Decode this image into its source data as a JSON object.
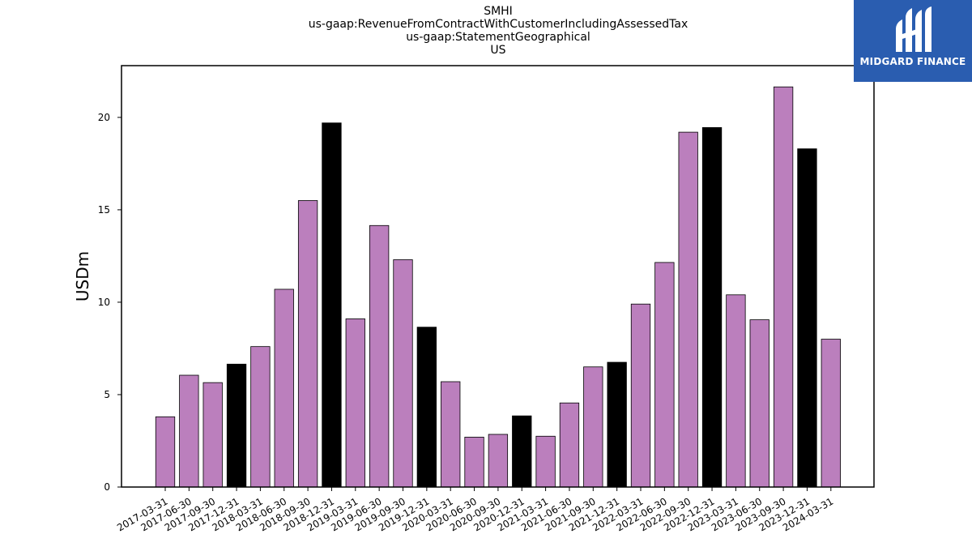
{
  "chart_data": {
    "type": "bar",
    "title_lines": [
      "SMHI",
      "us-gaap:RevenueFromContractWithCustomerIncludingAssessedTax",
      "us-gaap:StatementGeographical",
      "US"
    ],
    "xlabel": "",
    "ylabel": "USDm",
    "ylim": [
      0,
      22.8
    ],
    "yticks": [
      0,
      5,
      10,
      15,
      20
    ],
    "categories": [
      "2017-03-31",
      "2017-06-30",
      "2017-09-30",
      "2017-12-31",
      "2018-03-31",
      "2018-06-30",
      "2018-09-30",
      "2018-12-31",
      "2019-03-31",
      "2019-06-30",
      "2019-09-30",
      "2019-12-31",
      "2020-03-31",
      "2020-06-30",
      "2020-09-30",
      "2020-12-31",
      "2021-03-31",
      "2021-06-30",
      "2021-09-30",
      "2021-12-31",
      "2022-03-31",
      "2022-06-30",
      "2022-09-30",
      "2022-12-31",
      "2023-03-31",
      "2023-06-30",
      "2023-09-30",
      "2023-12-31",
      "2024-03-31"
    ],
    "values": [
      3.8,
      6.05,
      5.65,
      6.65,
      7.6,
      10.7,
      15.5,
      19.7,
      9.1,
      14.15,
      12.3,
      8.65,
      5.7,
      2.7,
      2.85,
      3.85,
      2.75,
      4.55,
      6.5,
      6.75,
      9.9,
      12.15,
      19.2,
      19.45,
      10.4,
      9.05,
      21.65,
      18.3,
      8.0
    ],
    "bar_colors": [
      "#bb7fbd",
      "#bb7fbd",
      "#bb7fbd",
      "#000000",
      "#bb7fbd",
      "#bb7fbd",
      "#bb7fbd",
      "#000000",
      "#bb7fbd",
      "#bb7fbd",
      "#bb7fbd",
      "#000000",
      "#bb7fbd",
      "#bb7fbd",
      "#bb7fbd",
      "#000000",
      "#bb7fbd",
      "#bb7fbd",
      "#bb7fbd",
      "#000000",
      "#bb7fbd",
      "#bb7fbd",
      "#bb7fbd",
      "#000000",
      "#bb7fbd",
      "#bb7fbd",
      "#bb7fbd",
      "#000000",
      "#bb7fbd"
    ],
    "grid": false,
    "legend": "none"
  },
  "logo": {
    "text": "MIDGARD FINANCE",
    "background": "#2a5db0",
    "icon": "midgard-logo-icon"
  }
}
